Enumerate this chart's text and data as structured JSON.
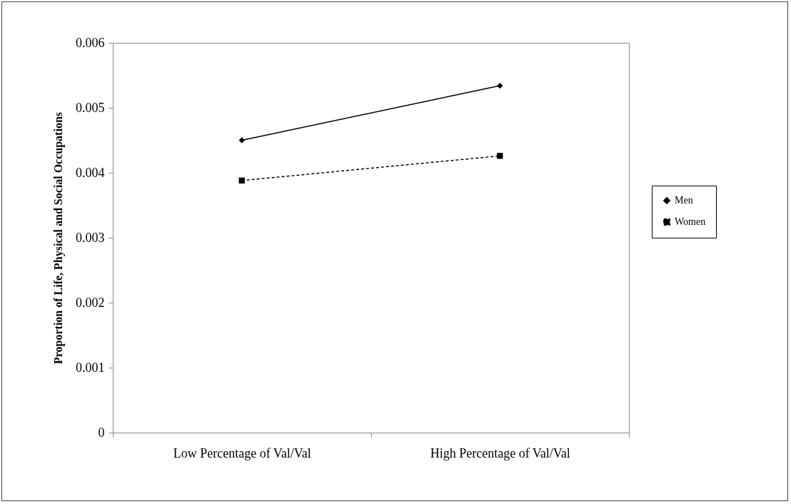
{
  "chart_data": {
    "type": "line",
    "ylabel": "Proportion of Life, Physical and Social Occupations",
    "categories": [
      "Low Percentage of Val/Val",
      "High Percentage of Val/Val"
    ],
    "series": [
      {
        "name": "Men",
        "color": "#000000",
        "values": [
          0.0045,
          0.00534
        ],
        "marker": "diamond",
        "line_style": "solid"
      },
      {
        "name": "Women",
        "color": "#000000",
        "values": [
          0.00388,
          0.00426
        ],
        "marker": "square",
        "line_style": "dashed"
      }
    ],
    "ylim": [
      0,
      0.006
    ],
    "yticks": [
      0,
      0.001,
      0.002,
      0.003,
      0.004,
      0.005,
      0.006
    ],
    "grid": false,
    "legend": "right"
  }
}
